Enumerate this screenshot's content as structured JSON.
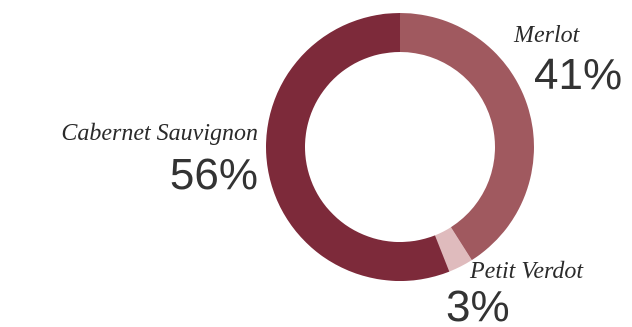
{
  "chart_data": {
    "type": "pie",
    "title": "",
    "slices": [
      {
        "name": "Merlot",
        "value": 41,
        "label": "41%",
        "color": "#a0595f"
      },
      {
        "name": "Petit Verdot",
        "value": 3,
        "label": "3%",
        "color": "#dfbbbd"
      },
      {
        "name": "Cabernet Sauvignon",
        "value": 56,
        "label": "56%",
        "color": "#7d2a3a"
      }
    ],
    "donut": true,
    "start_angle_deg": 0,
    "direction": "clockwise"
  }
}
